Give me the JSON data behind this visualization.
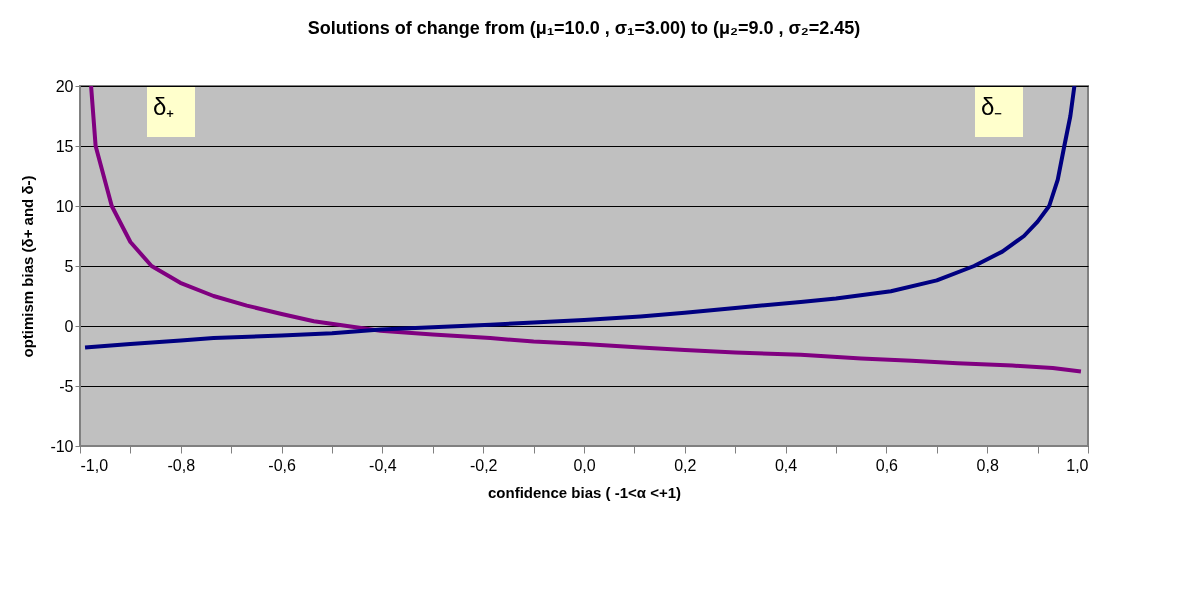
{
  "chart_data": {
    "type": "line",
    "title": "Solutions of change from (μ₁=10.0 , σ₁=3.00) to (μ₂=9.0 , σ₂=2.45)",
    "xlabel": "confidence bias ( -1<α <+1)",
    "ylabel": "optimism bias  (δ+ and δ-)",
    "series": [
      {
        "name": "δ₊",
        "color": "#800080",
        "x": [
          -0.978,
          -0.969,
          -0.937,
          -0.9,
          -0.858,
          -0.801,
          -0.735,
          -0.669,
          -0.6,
          -0.536,
          -0.47,
          -0.404,
          -0.3,
          -0.186,
          -0.1,
          0.0,
          0.112,
          0.2,
          0.3,
          0.43,
          0.55,
          0.65,
          0.741,
          0.85,
          0.93,
          0.986
        ],
        "values": [
          20,
          15,
          10,
          7,
          5,
          3.6,
          2.5,
          1.7,
          1.0,
          0.4,
          0,
          -0.4,
          -0.7,
          -1.0,
          -1.3,
          -1.5,
          -1.8,
          -2.0,
          -2.2,
          -2.4,
          -2.7,
          -2.9,
          -3.1,
          -3.3,
          -3.5,
          -3.8
        ]
      },
      {
        "name": "δ₋",
        "color": "#000080",
        "x": [
          -0.99,
          -0.9,
          -0.8,
          -0.735,
          -0.6,
          -0.5,
          -0.404,
          -0.3,
          -0.186,
          -0.1,
          0.0,
          0.112,
          0.2,
          0.3,
          0.43,
          0.5,
          0.609,
          0.7,
          0.774,
          0.83,
          0.873,
          0.9,
          0.923,
          0.94,
          0.953,
          0.965,
          0.973
        ],
        "values": [
          -1.8,
          -1.5,
          -1.2,
          -1.0,
          -0.8,
          -0.6,
          -0.3,
          -0.1,
          0.1,
          0.3,
          0.5,
          0.8,
          1.1,
          1.5,
          2.0,
          2.3,
          2.9,
          3.8,
          5.0,
          6.2,
          7.5,
          8.7,
          10,
          12.2,
          15,
          17.5,
          20
        ]
      }
    ],
    "xlim": [
      -1,
      1
    ],
    "ylim": [
      -10,
      20
    ],
    "xticks": [
      {
        "value": -1,
        "label": "-1,0"
      },
      {
        "value": -0.9,
        "label": null
      },
      {
        "value": -0.8,
        "label": "-0,8"
      },
      {
        "value": -0.7,
        "label": null
      },
      {
        "value": -0.6,
        "label": "-0,6"
      },
      {
        "value": -0.5,
        "label": null
      },
      {
        "value": -0.4,
        "label": "-0,4"
      },
      {
        "value": -0.3,
        "label": null
      },
      {
        "value": -0.2,
        "label": "-0,2"
      },
      {
        "value": -0.1,
        "label": null
      },
      {
        "value": 0,
        "label": "0,0"
      },
      {
        "value": 0.1,
        "label": null
      },
      {
        "value": 0.2,
        "label": "0,2"
      },
      {
        "value": 0.3,
        "label": null
      },
      {
        "value": 0.4,
        "label": "0,4"
      },
      {
        "value": 0.5,
        "label": null
      },
      {
        "value": 0.6,
        "label": "0,6"
      },
      {
        "value": 0.7,
        "label": null
      },
      {
        "value": 0.8,
        "label": "0,8"
      },
      {
        "value": 0.9,
        "label": null
      },
      {
        "value": 1,
        "label": "1,0"
      }
    ],
    "yticks": [
      -10,
      -5,
      0,
      5,
      10,
      15,
      20
    ],
    "grid": "y",
    "legend": false,
    "line_style": "solid",
    "marker": "none"
  }
}
